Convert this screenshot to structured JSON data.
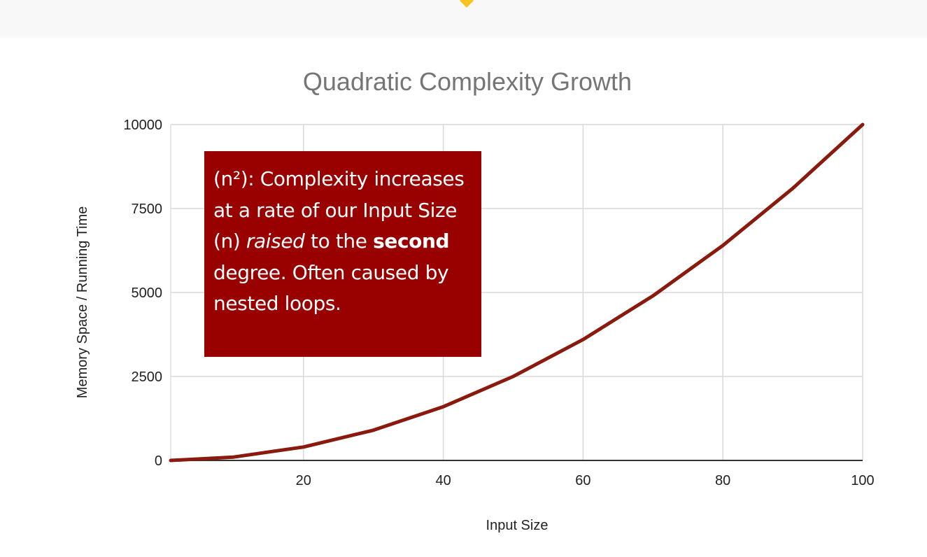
{
  "annotation": {
    "line1": "(n²): Complexity increases at a rate of our Input Size (n) ",
    "italic_word": "raised",
    "line2": " to the ",
    "bold_word": "second",
    "line3": " degree. Often caused by nested loops."
  },
  "chart_data": {
    "type": "line",
    "title": "Quadratic Complexity Growth",
    "xlabel": "Input Size",
    "ylabel": "Memory Space / Running Time",
    "xlim": [
      1,
      100
    ],
    "ylim": [
      0,
      10000
    ],
    "x_ticks": [
      20,
      40,
      60,
      80,
      100
    ],
    "y_ticks": [
      0,
      2500,
      5000,
      7500,
      10000
    ],
    "grid": true,
    "legend": "none",
    "series": [
      {
        "color": "#8b1a0e",
        "x": [
          1,
          10,
          20,
          30,
          40,
          50,
          60,
          70,
          80,
          90,
          100
        ],
        "y": [
          1,
          100,
          400,
          900,
          1600,
          2500,
          3600,
          4900,
          6400,
          8100,
          10000
        ]
      }
    ]
  },
  "colors": {
    "annotation_bg": "#990000",
    "line": "#8b1a0e",
    "title": "#757575",
    "grid": "#d9d9d9",
    "top_marker": "#f5c51c"
  }
}
